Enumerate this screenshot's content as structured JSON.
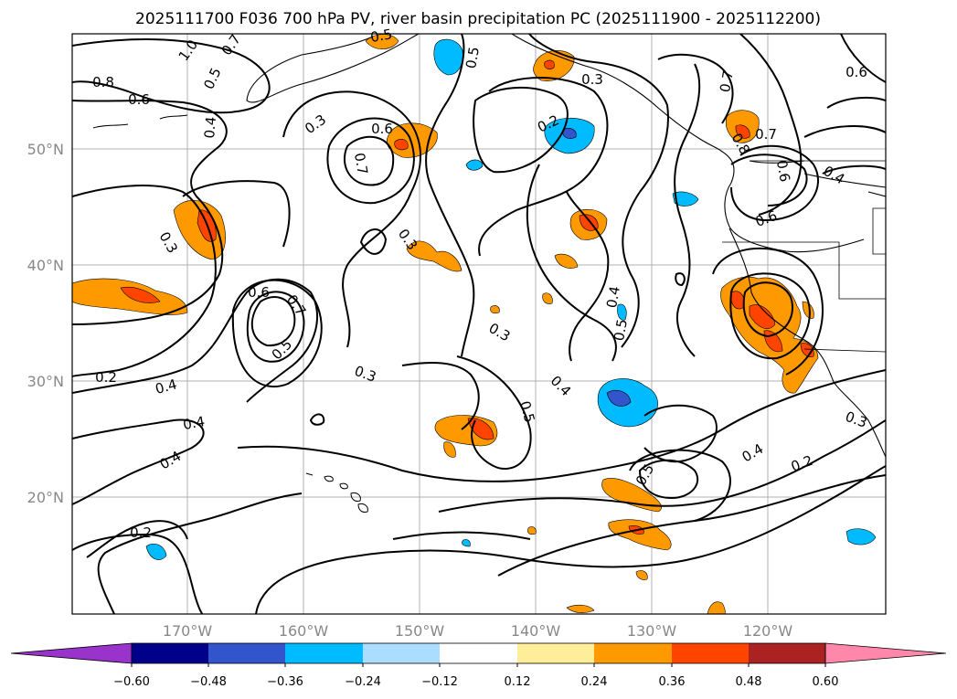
{
  "title": "2025111700 F036 700 hPa PV, river basin precipitation PC (2025111900 - 2025112200)",
  "map": {
    "lat_labels": [
      "50°N",
      "40°N",
      "30°N",
      "20°N"
    ],
    "lon_labels": [
      "170°W",
      "160°W",
      "150°W",
      "140°W",
      "130°W",
      "120°W"
    ],
    "contour_labels": [
      "1.0",
      "0.7",
      "0.8",
      "0.5",
      "0.6",
      "0.4",
      "0.3",
      "0.6",
      "0.7",
      "0.5",
      "0.3",
      "0.2",
      "0.3",
      "0.7",
      "0.6",
      "0.7",
      "0.8",
      "0.6",
      "0.4",
      "0.6",
      "0.3",
      "0.6",
      "0.7",
      "0.5",
      "0.3",
      "0.2",
      "0.4",
      "0.4",
      "0.4",
      "0.3",
      "0.5",
      "0.4",
      "0.4",
      "0.5",
      "0.5",
      "0.4",
      "0.2",
      "0.3",
      "0.2",
      "0.5"
    ]
  },
  "colorbar": {
    "tick_labels": [
      "−0.60",
      "−0.48",
      "−0.36",
      "−0.24",
      "−0.12",
      "0.12",
      "0.24",
      "0.36",
      "0.48",
      "0.60"
    ],
    "colors": [
      "#9933cc",
      "#000088",
      "#3355cc",
      "#00bbff",
      "#aaddff",
      "#ffffff",
      "#ffee99",
      "#ff9900",
      "#ff4400",
      "#aa2222",
      "#ff88aa"
    ]
  }
}
